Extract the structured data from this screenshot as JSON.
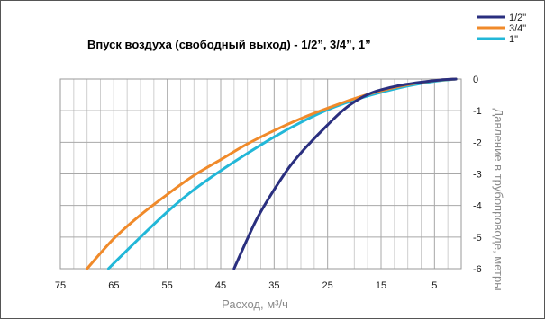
{
  "chart_data": {
    "type": "line",
    "title": "Впуск воздуха (свободный выход) - 1/2”, 3/4”, 1”",
    "xlabel": "Расход, м³/ч",
    "ylabel": "Давление в трубопроводе, метры",
    "xlim": [
      75,
      0
    ],
    "x_reversed": true,
    "ylim": [
      -6,
      0
    ],
    "x_ticks": [
      "75",
      "65",
      "55",
      "45",
      "35",
      "25",
      "15",
      "5"
    ],
    "y_ticks": [
      "0",
      "-1",
      "-2",
      "-3",
      "-4",
      "-5",
      "-6"
    ],
    "grid": true,
    "legend_position": "top-right",
    "y_axis_side": "right",
    "series": [
      {
        "name": "1/2\"",
        "color": "#2a2f7f",
        "x": [
          42.5,
          40,
          38,
          35,
          32,
          29,
          25,
          22,
          19,
          16,
          12,
          8,
          4,
          1
        ],
        "y": [
          -6,
          -5.05,
          -4.35,
          -3.5,
          -2.75,
          -2.15,
          -1.45,
          -0.97,
          -0.62,
          -0.39,
          -0.22,
          -0.11,
          -0.03,
          0
        ]
      },
      {
        "name": "3/4\"",
        "color": "#f08a2a",
        "x": [
          70,
          65,
          60,
          55,
          50,
          45,
          40,
          35,
          30,
          25,
          20,
          15,
          10,
          5,
          1
        ],
        "y": [
          -6,
          -5.05,
          -4.3,
          -3.65,
          -3.05,
          -2.55,
          -2.05,
          -1.63,
          -1.25,
          -0.92,
          -0.62,
          -0.37,
          -0.18,
          -0.05,
          0
        ]
      },
      {
        "name": "1\"",
        "color": "#22b7d8",
        "x": [
          66,
          60,
          55,
          50,
          45,
          40,
          35,
          30,
          25,
          21,
          18,
          15,
          10,
          5,
          1
        ],
        "y": [
          -6,
          -5.0,
          -4.2,
          -3.5,
          -2.9,
          -2.35,
          -1.83,
          -1.37,
          -0.97,
          -0.72,
          -0.56,
          -0.42,
          -0.22,
          -0.07,
          0
        ]
      }
    ]
  }
}
